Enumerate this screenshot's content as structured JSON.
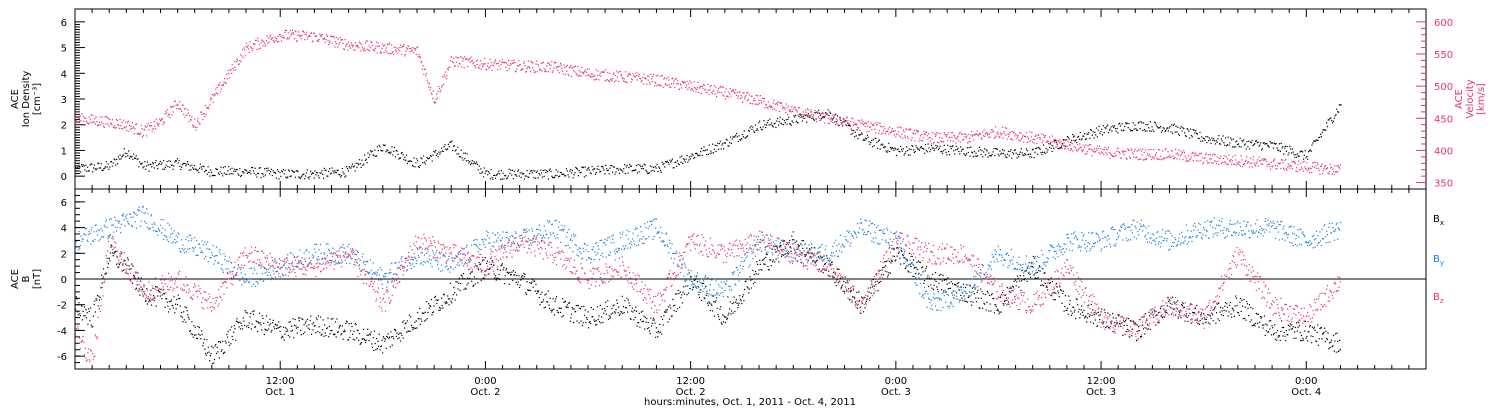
{
  "colors": {
    "black": "#000000",
    "pink": "#e8336b",
    "blue": "#1a7fe0"
  },
  "chart_data": [
    {
      "type": "scatter",
      "panel": "top",
      "ylabel_left": [
        "ACE",
        "Ion Density",
        "[cm⁻³]"
      ],
      "ylabel_right": [
        "ACE",
        "Velocity",
        "[km/s]"
      ],
      "ylim_left": [
        -0.5,
        6.5
      ],
      "ylim_right": [
        340,
        620
      ],
      "yticks_left": [
        0,
        1,
        2,
        3,
        4,
        5,
        6
      ],
      "yticks_right": [
        350,
        400,
        450,
        500,
        550,
        600
      ],
      "series": [
        {
          "axis": "left",
          "color": "#000000",
          "hours": [
            0,
            2,
            3,
            4,
            6,
            8,
            10,
            12,
            14,
            16,
            18,
            20,
            22,
            24,
            26,
            28,
            30,
            32,
            34,
            36,
            38,
            40,
            42,
            44,
            46,
            48,
            50,
            52,
            54,
            56,
            58,
            60,
            62,
            64,
            66,
            68,
            70,
            72,
            74
          ],
          "values": [
            0.3,
            0.4,
            1.0,
            0.4,
            0.5,
            0.2,
            0.2,
            0.1,
            0.1,
            0.2,
            1.2,
            0.5,
            1.2,
            0.1,
            0.1,
            0.1,
            0.2,
            0.3,
            0.3,
            0.8,
            1.3,
            2.0,
            2.2,
            2.5,
            1.5,
            1.0,
            1.1,
            1.0,
            0.9,
            0.9,
            1.4,
            1.8,
            2.0,
            1.9,
            1.5,
            1.3,
            1.2,
            0.8,
            2.8
          ]
        },
        {
          "axis": "right",
          "color": "#e8336b",
          "hours": [
            0,
            2,
            3,
            4,
            5,
            6,
            7,
            8,
            10,
            12,
            14,
            16,
            18,
            20,
            21,
            22,
            24,
            26,
            28,
            30,
            32,
            34,
            36,
            38,
            40,
            42,
            44,
            46,
            48,
            50,
            52,
            54,
            56,
            58,
            60,
            62,
            64,
            66,
            68,
            70,
            72,
            74
          ],
          "values": [
            450,
            445,
            440,
            430,
            445,
            475,
            440,
            480,
            560,
            580,
            578,
            565,
            560,
            555,
            480,
            540,
            535,
            532,
            530,
            520,
            515,
            510,
            500,
            490,
            478,
            462,
            450,
            440,
            430,
            420,
            420,
            430,
            420,
            410,
            398,
            395,
            395,
            388,
            385,
            380,
            375,
            370
          ]
        }
      ]
    },
    {
      "type": "scatter",
      "panel": "bottom",
      "ylabel": [
        "ACE",
        "B",
        "[nT]"
      ],
      "ylim": [
        -7,
        7
      ],
      "yticks": [
        -6,
        -4,
        -2,
        0,
        2,
        4,
        6
      ],
      "legend_position": "right",
      "series": [
        {
          "name": "Bx",
          "color": "#000000",
          "hours": [
            0,
            1,
            2,
            3,
            4,
            6,
            8,
            10,
            12,
            14,
            16,
            18,
            20,
            22,
            24,
            26,
            28,
            30,
            32,
            34,
            36,
            38,
            40,
            42,
            44,
            46,
            48,
            50,
            52,
            54,
            56,
            58,
            60,
            62,
            64,
            66,
            68,
            70,
            72,
            74
          ],
          "values": [
            -2,
            -3,
            2,
            1,
            -1,
            -2,
            -6,
            -3,
            -4,
            -3.5,
            -4,
            -5,
            -3,
            -1,
            1,
            0,
            -2,
            -3,
            -2,
            -4,
            0,
            -3,
            1,
            3,
            1,
            -2,
            2,
            0,
            -1,
            -2,
            1,
            -2,
            -3,
            -4,
            -2,
            -3,
            -2,
            -4,
            -4,
            -5
          ]
        },
        {
          "name": "By",
          "color": "#1a7fe0",
          "hours": [
            0,
            2,
            4,
            6,
            8,
            10,
            12,
            14,
            16,
            18,
            20,
            22,
            24,
            26,
            28,
            30,
            32,
            34,
            36,
            38,
            40,
            42,
            44,
            46,
            48,
            50,
            52,
            54,
            56,
            58,
            60,
            62,
            64,
            66,
            68,
            70,
            72,
            74
          ],
          "values": [
            3,
            4,
            5,
            3,
            2,
            0,
            1,
            2,
            2,
            0,
            2,
            1,
            3,
            3,
            4,
            2,
            3,
            4,
            0,
            -1,
            3,
            2,
            2,
            4,
            3,
            -2,
            -1,
            2,
            1,
            3,
            3,
            4,
            3,
            4,
            4,
            4,
            3,
            4
          ]
        },
        {
          "name": "Bz",
          "color": "#e8336b",
          "hours": [
            0,
            1,
            2,
            3,
            4,
            6,
            8,
            10,
            12,
            14,
            16,
            18,
            20,
            22,
            24,
            26,
            28,
            30,
            32,
            34,
            36,
            38,
            40,
            42,
            44,
            46,
            48,
            50,
            52,
            54,
            56,
            58,
            60,
            62,
            64,
            66,
            68,
            70,
            72,
            74
          ],
          "values": [
            -4,
            -6.5,
            3,
            1,
            -1,
            0,
            -2,
            2,
            1,
            1,
            2,
            -2,
            3,
            2,
            1,
            3,
            2,
            0,
            1,
            -2,
            3,
            2,
            3,
            2,
            1,
            -2,
            3,
            2,
            2,
            -1,
            -2,
            1,
            -3,
            -4,
            -2,
            -3,
            2,
            -2,
            -3,
            0
          ]
        }
      ]
    }
  ],
  "xaxis": {
    "tick_times": [
      "12:00",
      "0:00",
      "12:00",
      "0:00",
      "12:00",
      "0:00"
    ],
    "tick_dates": [
      "Oct. 1",
      "Oct. 2",
      "Oct. 2",
      "Oct. 3",
      "Oct. 3",
      "Oct. 4"
    ],
    "tick_hours": [
      12,
      24,
      36,
      48,
      60,
      72
    ],
    "xlim_hours": [
      0,
      79
    ],
    "label": "hours:minutes, Oct.  1, 2011 - Oct.  4, 2011"
  },
  "legend": {
    "bx": {
      "base": "B",
      "sub": "x"
    },
    "by": {
      "base": "B",
      "sub": "y"
    },
    "bz": {
      "base": "B",
      "sub": "z"
    }
  }
}
